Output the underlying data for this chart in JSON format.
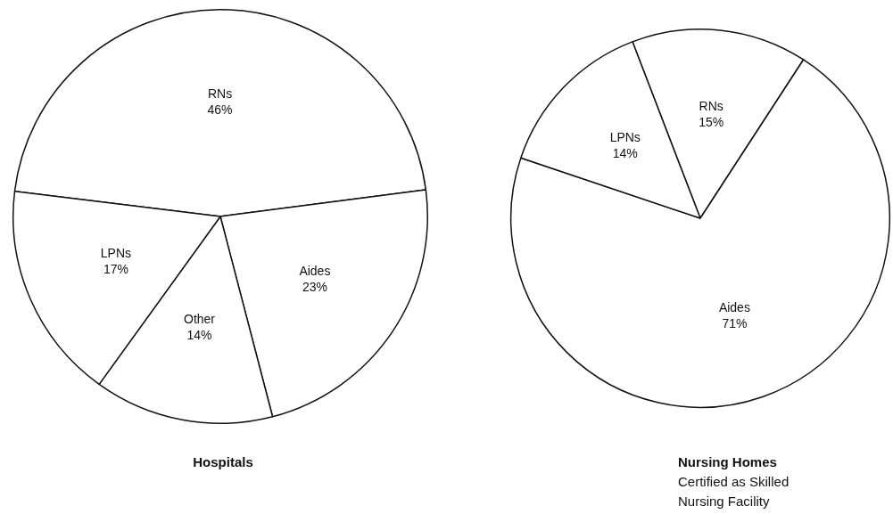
{
  "chart_data": [
    {
      "type": "pie",
      "title": "Hospitals",
      "categories": [
        "RNs",
        "Aides",
        "Other",
        "LPNs"
      ],
      "values": [
        46,
        23,
        14,
        17
      ],
      "value_labels": [
        "46%",
        "23%",
        "14%",
        "17%"
      ],
      "colors": [
        "#ffffff",
        "#ffffff",
        "#ffffff",
        "#ffffff"
      ],
      "legend": false
    },
    {
      "type": "pie",
      "title": "Nursing Homes",
      "subtitle": "Certified as Skilled Nursing Facility",
      "categories": [
        "RNs",
        "Aides",
        "LPNs"
      ],
      "values": [
        15,
        71,
        14
      ],
      "value_labels": [
        "15%",
        "71%",
        "14%"
      ],
      "colors": [
        "#ffffff",
        "#ffffff",
        "#ffffff"
      ],
      "legend": false
    }
  ]
}
